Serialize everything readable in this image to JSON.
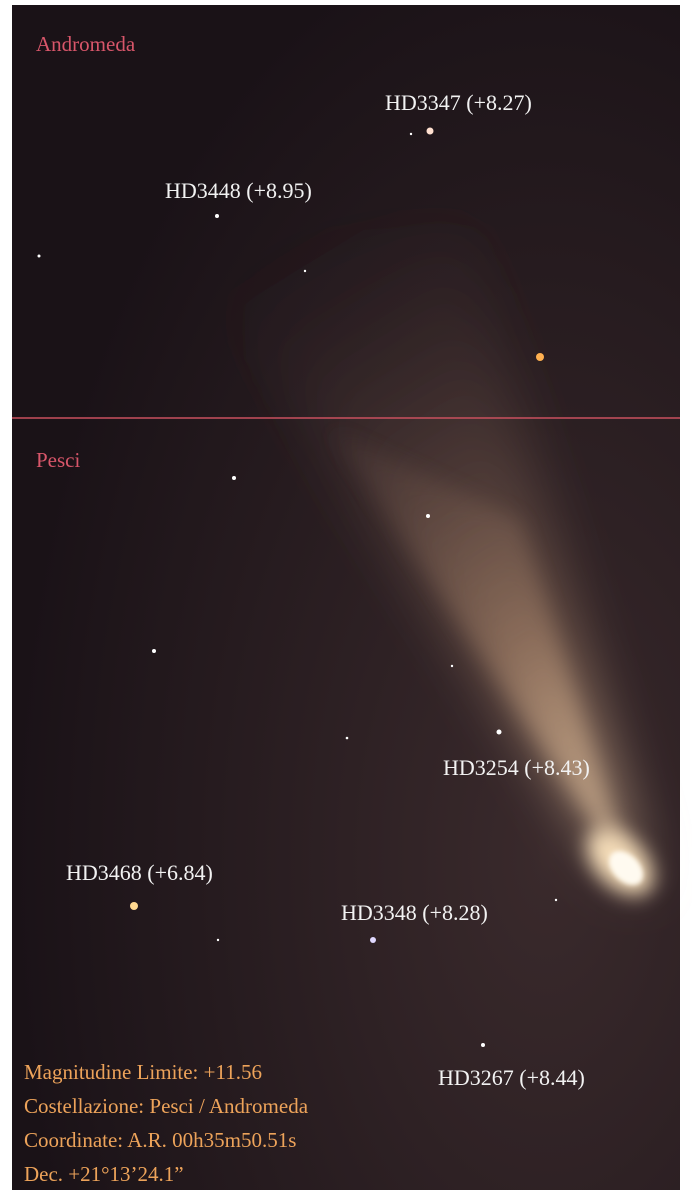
{
  "constellations": [
    "Andromeda",
    "Pesci"
  ],
  "stars": [
    {
      "label": "HD3347 (+8.27)"
    },
    {
      "label": "HD3448 (+8.95)"
    },
    {
      "label": "HD3254 (+8.43)"
    },
    {
      "label": "HD3468 (+6.84)"
    },
    {
      "label": "HD3348 (+8.28)"
    },
    {
      "label": "HD3267 (+8.44)"
    }
  ],
  "info": [
    "Magnitudine Limite: +11.56",
    "Costellazione: Pesci / Andromeda",
    "Coordinate: A.R. 00h35m50.51s",
    "Dec. +21°13’24.1”"
  ]
}
